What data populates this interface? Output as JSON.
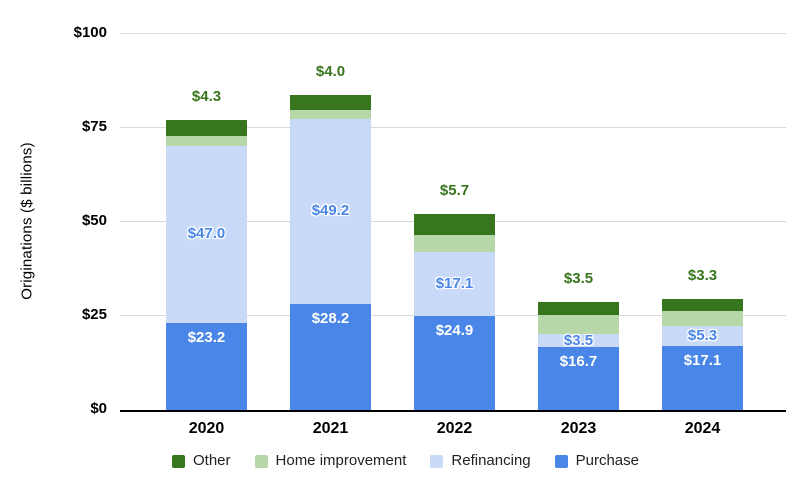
{
  "chart": {
    "ylabel": "Originations ($ billions)",
    "colors": {
      "purchase": "#4a86e8",
      "refinancing": "#c9daf8",
      "home_improvement": "#b6d7a8",
      "other": "#38761d",
      "segment_label_blue": "#4a86e8",
      "above_bar_label_green": "#38761d",
      "gridline": "#d9d9d9",
      "axis_line": "#000000"
    }
  },
  "chart_data": {
    "type": "bar",
    "stacked": true,
    "title": "",
    "xlabel": "",
    "ylabel": "Originations ($ billions)",
    "ylim": [
      0,
      100
    ],
    "grid": true,
    "legend_position": "bottom",
    "categories": [
      "2020",
      "2021",
      "2022",
      "2023",
      "2024"
    ],
    "y_ticks": [
      {
        "label": "$100",
        "value": 100
      },
      {
        "label": "$75",
        "value": 75
      },
      {
        "label": "$50",
        "value": 50
      },
      {
        "label": "$25",
        "value": 25
      },
      {
        "label": "$0",
        "value": 0
      }
    ],
    "series": [
      {
        "name": "Purchase",
        "color": "#4a86e8",
        "values": [
          23.2,
          28.2,
          24.9,
          16.7,
          17.1
        ],
        "labels": [
          "$23.2",
          "$28.2",
          "$24.9",
          "$16.7",
          "$17.1"
        ],
        "label_style": "inside-top-white"
      },
      {
        "name": "Refinancing",
        "color": "#c9daf8",
        "values": [
          47.0,
          49.2,
          17.1,
          3.5,
          5.3
        ],
        "labels": [
          "$47.0",
          "$49.2",
          "$17.1",
          "$3.5",
          "$5.3"
        ],
        "label_style": "center-blue"
      },
      {
        "name": "Home improvement",
        "color": "#b6d7a8",
        "values": [
          2.6,
          2.3,
          4.5,
          5.0,
          3.9
        ],
        "labels": null,
        "label_style": "none"
      },
      {
        "name": "Other",
        "color": "#38761d",
        "values": [
          4.3,
          4.0,
          5.7,
          3.5,
          3.3
        ],
        "labels": [
          "$4.3",
          "$4.0",
          "$5.7",
          "$3.5",
          "$3.3"
        ],
        "label_style": "above-green"
      }
    ],
    "legend_order": [
      "Other",
      "Home improvement",
      "Refinancing",
      "Purchase"
    ]
  }
}
